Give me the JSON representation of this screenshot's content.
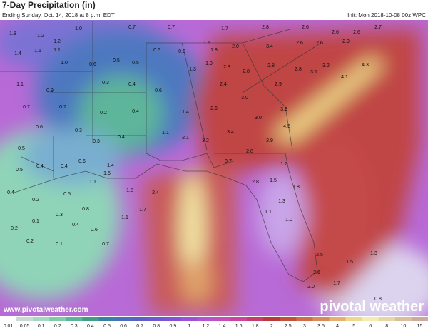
{
  "header": {
    "title": "7-Day Precipitation (in)",
    "subtitle": "Ending Sunday, Oct. 14, 2018 at 8 p.m. EDT",
    "init": "Init: Mon 2018-10-08 00z WPC"
  },
  "map": {
    "labels": [
      "1.8",
      "1.2",
      "1.0",
      "1.2",
      "1.4",
      "1.1",
      "1.1",
      "1.0",
      "0.7",
      "0.7",
      "1.7",
      "2.8",
      "2.6",
      "2.6",
      "2.6",
      "2.7",
      "0.6",
      "0.8",
      "1.6",
      "1.8",
      "2.0",
      "3.4",
      "2.6",
      "2.6",
      "2.9",
      "0.5",
      "0.5",
      "0.6",
      "1.3",
      "1.9",
      "2.3",
      "2.8",
      "2.8",
      "2.8",
      "3.1",
      "3.2",
      "4.3",
      "1.1",
      "0.9",
      "0.3",
      "0.4",
      "0.6",
      "2.4",
      "3.0",
      "2.9",
      "4.1",
      "0.7",
      "0.7",
      "0.2",
      "0.4",
      "1.4",
      "2.6",
      "3.0",
      "3.9",
      "0.6",
      "0.3",
      "0.4",
      "1.1",
      "2.1",
      "3.2",
      "3.4",
      "2.9",
      "4.5",
      "0.5",
      "0.3",
      "0.6",
      "2.8",
      "1.4",
      "3.7",
      "1.7",
      "0.5",
      "0.4",
      "0.4",
      "1.6",
      "2.8",
      "1.5",
      "1.8",
      "0.4",
      "1.1",
      "1.8",
      "2.4",
      "0.2",
      "0.5",
      "1.3",
      "0.1",
      "0.3",
      "0.8",
      "1.7",
      "1.1",
      "1.0",
      "0.2",
      "0.4",
      "0.6",
      "1.1",
      "0.2",
      "0.1",
      "0.7",
      "1.3",
      "2.5",
      "1.5",
      "2.6",
      "1.7",
      "2.0",
      "0.8"
    ]
  },
  "colorbar": {
    "labels": [
      "0.01",
      "0.05",
      "0.1",
      "0.2",
      "0.3",
      "0.4",
      "0.5",
      "0.6",
      "0.7",
      "0.8",
      "0.9",
      "1",
      "1.2",
      "1.4",
      "1.6",
      "1.8",
      "2",
      "2.5",
      "3",
      "3.5",
      "4",
      "5",
      "6",
      "8",
      "10",
      "15"
    ],
    "colors": [
      "#ffffff",
      "#c9d9d4",
      "#a6d7c3",
      "#7fcaa9",
      "#5cb59b",
      "#3e9e88",
      "#3a7fa6",
      "#4b6fb8",
      "#5a62c4",
      "#6e5ad0",
      "#8452d6",
      "#9c52d8",
      "#b454d4",
      "#c34fb8",
      "#c9469b",
      "#c43d6b",
      "#b93a3a",
      "#c0523d",
      "#cc6f4a",
      "#d88b5c",
      "#e6b070",
      "#f0d88a",
      "#f4ecb0",
      "#e8d6a8",
      "#d9bfa0",
      "#ccaaa0"
    ]
  },
  "footer": {
    "url": "www.pivotalweather.com",
    "brand": "pivotal weather"
  }
}
